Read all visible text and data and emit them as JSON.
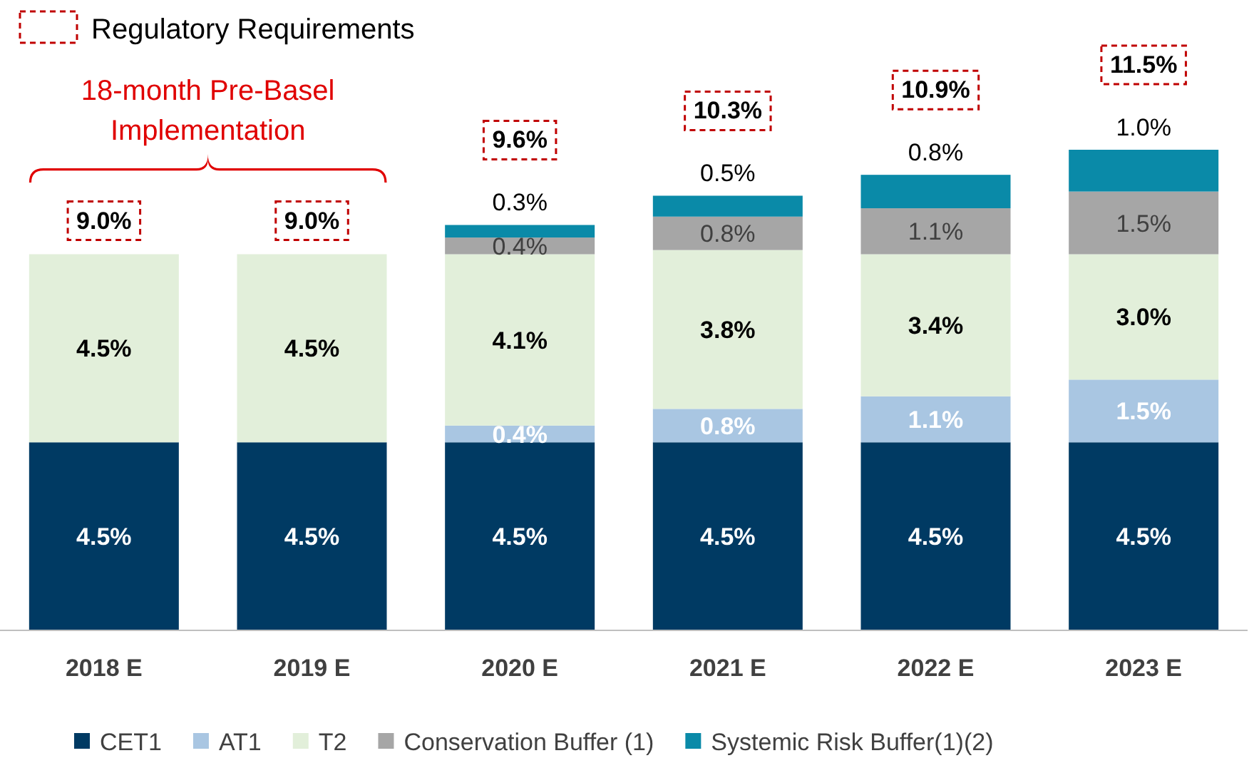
{
  "chart_data": {
    "type": "bar",
    "stacked": true,
    "categories": [
      "2018 E",
      "2019 E",
      "2020 E",
      "2021 E",
      "2022 E",
      "2023 E"
    ],
    "series": [
      {
        "name": "CET1",
        "color": "#003a63",
        "values": [
          4.5,
          4.5,
          4.5,
          4.5,
          4.5,
          4.5
        ],
        "value_labels": [
          "4.5%",
          "4.5%",
          "4.5%",
          "4.5%",
          "4.5%",
          "4.5%"
        ]
      },
      {
        "name": "AT1",
        "color": "#a9c6e2",
        "values": [
          null,
          null,
          0.4,
          0.8,
          1.1,
          1.5
        ],
        "value_labels": [
          null,
          null,
          "0.4%",
          "0.8%",
          "1.1%",
          "1.5%"
        ]
      },
      {
        "name": "T2",
        "color": "#e2efda",
        "values": [
          4.5,
          4.5,
          4.1,
          3.8,
          3.4,
          3.0
        ],
        "value_labels": [
          "4.5%",
          "4.5%",
          "4.1%",
          "3.8%",
          "3.4%",
          "3.0%"
        ]
      },
      {
        "name": "Conservation Buffer (1)",
        "color": "#a6a6a6",
        "values": [
          null,
          null,
          0.4,
          0.8,
          1.1,
          1.5
        ],
        "value_labels": [
          null,
          null,
          "0.4%",
          "0.8%",
          "1.1%",
          "1.5%"
        ]
      },
      {
        "name": "Systemic Risk Buffer(1)(2)",
        "color": "#0a8aa8",
        "values": [
          null,
          null,
          0.3,
          0.5,
          0.8,
          1.0
        ],
        "value_labels": [
          null,
          null,
          "0.3%",
          "0.5%",
          "0.8%",
          "1.0%"
        ]
      }
    ],
    "totals": [
      "9.0%",
      "9.0%",
      "9.6%",
      "10.3%",
      "10.9%",
      "11.5%"
    ],
    "annotations": [
      "Regulatory Requirements",
      "18-month Pre-Basel Implementation"
    ],
    "legend": "bottom"
  }
}
